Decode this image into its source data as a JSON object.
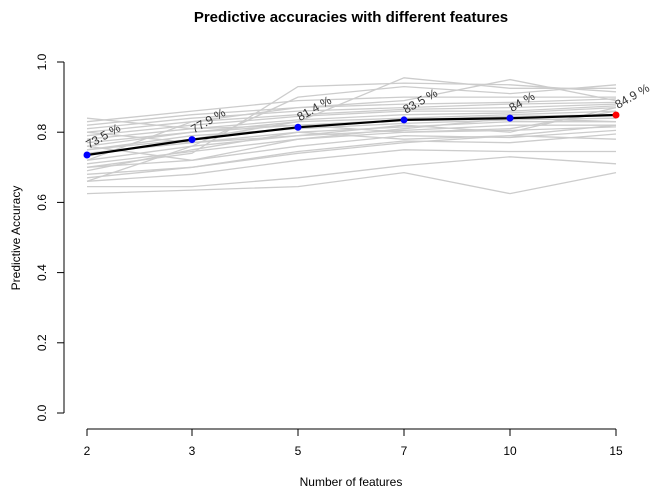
{
  "chart_data": {
    "type": "line",
    "title": "Predictive accuracies with different features",
    "xlabel": "Number of features",
    "ylabel": "Predictive Accuracy",
    "x_categories": [
      "2",
      "3",
      "5",
      "7",
      "10",
      "15"
    ],
    "ylim": [
      0,
      1
    ],
    "y_ticks": [
      "0.0",
      "0.2",
      "0.4",
      "0.6",
      "0.8",
      "1.0"
    ],
    "grid": false,
    "legend": "none",
    "mean_series": {
      "values": [
        0.735,
        0.779,
        0.814,
        0.835,
        0.84,
        0.849
      ],
      "labels": [
        "73.5 %",
        "77.9 %",
        "81.4 %",
        "83.5 %",
        "84 %",
        "84.9 %"
      ],
      "line_color": "#000000",
      "point_color": "#0000ff",
      "highlight_color": "#ff0000",
      "highlight_index": 5
    },
    "background_series_color": "#cccccc",
    "background_series": [
      [
        0.625,
        0.635,
        0.645,
        0.685,
        0.625,
        0.685
      ],
      [
        0.645,
        0.645,
        0.67,
        0.705,
        0.73,
        0.71
      ],
      [
        0.66,
        0.68,
        0.72,
        0.75,
        0.745,
        0.745
      ],
      [
        0.68,
        0.7,
        0.745,
        0.775,
        0.77,
        0.795
      ],
      [
        0.7,
        0.72,
        0.76,
        0.79,
        0.785,
        0.805
      ],
      [
        0.71,
        0.745,
        0.78,
        0.8,
        0.805,
        0.815
      ],
      [
        0.72,
        0.76,
        0.79,
        0.805,
        0.82,
        0.82
      ],
      [
        0.74,
        0.77,
        0.8,
        0.815,
        0.83,
        0.83
      ],
      [
        0.75,
        0.79,
        0.81,
        0.825,
        0.835,
        0.84
      ],
      [
        0.76,
        0.8,
        0.82,
        0.835,
        0.845,
        0.85
      ],
      [
        0.77,
        0.8,
        0.83,
        0.84,
        0.85,
        0.86
      ],
      [
        0.78,
        0.81,
        0.835,
        0.85,
        0.855,
        0.87
      ],
      [
        0.79,
        0.82,
        0.845,
        0.86,
        0.86,
        0.875
      ],
      [
        0.8,
        0.83,
        0.85,
        0.865,
        0.87,
        0.88
      ],
      [
        0.81,
        0.84,
        0.86,
        0.87,
        0.88,
        0.885
      ],
      [
        0.82,
        0.85,
        0.87,
        0.88,
        0.885,
        0.895
      ],
      [
        0.83,
        0.86,
        0.89,
        0.9,
        0.9,
        0.9
      ],
      [
        0.7,
        0.74,
        0.93,
        0.94,
        0.935,
        0.915
      ],
      [
        0.66,
        0.76,
        0.9,
        0.93,
        0.91,
        0.935
      ],
      [
        0.75,
        0.78,
        0.83,
        0.955,
        0.925,
        0.925
      ],
      [
        0.72,
        0.83,
        0.87,
        0.89,
        0.95,
        0.89
      ],
      [
        0.8,
        0.77,
        0.79,
        0.82,
        0.8,
        0.87
      ],
      [
        0.84,
        0.81,
        0.82,
        0.8,
        0.81,
        0.86
      ],
      [
        0.69,
        0.75,
        0.8,
        0.78,
        0.79,
        0.78
      ],
      [
        0.76,
        0.72,
        0.78,
        0.81,
        0.84,
        0.83
      ],
      [
        0.67,
        0.7,
        0.74,
        0.77,
        0.79,
        0.82
      ]
    ]
  }
}
